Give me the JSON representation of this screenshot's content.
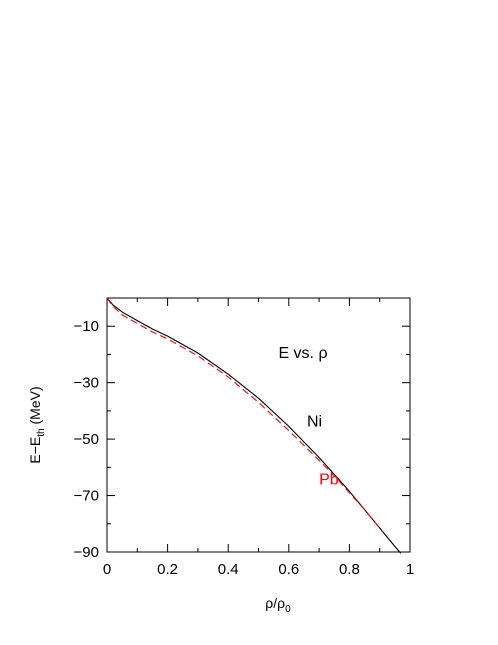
{
  "chart_data": {
    "type": "line",
    "title": "E vs. ρ",
    "xlabel": {
      "main": "ρ/ρ",
      "sub": "0"
    },
    "ylabel": {
      "main": "E−E",
      "sub": "th",
      "suffix": " (MeV)"
    },
    "xlim": [
      0,
      1
    ],
    "ylim": [
      -90,
      0
    ],
    "xticks": [
      0,
      0.2,
      0.4,
      0.6,
      0.8,
      1
    ],
    "xtick_labels": [
      "0",
      "0.2",
      "0.4",
      "0.6",
      "0.8",
      "1"
    ],
    "yticks": [
      -10,
      -30,
      -50,
      -70,
      -90
    ],
    "ytick_labels": [
      "−10",
      "−30",
      "−50",
      "−70",
      "−90"
    ],
    "grid": false,
    "series": [
      {
        "name": "Ni",
        "color": "#000000",
        "dash": "solid",
        "x": [
          0,
          0.02,
          0.05,
          0.1,
          0.15,
          0.2,
          0.3,
          0.4,
          0.5,
          0.6,
          0.7,
          0.75,
          0.8,
          0.85,
          0.9,
          0.95,
          0.97
        ],
        "y": [
          0,
          -2.5,
          -5.0,
          -8.0,
          -11.0,
          -13.5,
          -19.5,
          -27.0,
          -35.5,
          -45.5,
          -56.5,
          -62.5,
          -68.5,
          -75.0,
          -81.5,
          -88.0,
          -90.5
        ]
      },
      {
        "name": "Pb",
        "color": "#ff0000",
        "dash": "dashed",
        "x": [
          0,
          0.02,
          0.05,
          0.1,
          0.15,
          0.2,
          0.3,
          0.4,
          0.5,
          0.6,
          0.7,
          0.75,
          0.8,
          0.85,
          0.9,
          0.91
        ],
        "y": [
          0,
          -3.0,
          -6.0,
          -9.0,
          -12.0,
          -14.5,
          -20.5,
          -28.0,
          -37.0,
          -47.0,
          -57.5,
          -63.0,
          -69.0,
          -75.0,
          -81.5,
          -83.0
        ]
      }
    ],
    "annotations": [
      {
        "text": "Ni",
        "color": "#000000",
        "x": 0.66,
        "y": -45.5
      },
      {
        "text": "Pb",
        "color": "#ff0000",
        "x": 0.7,
        "y": -66.0
      }
    ]
  }
}
